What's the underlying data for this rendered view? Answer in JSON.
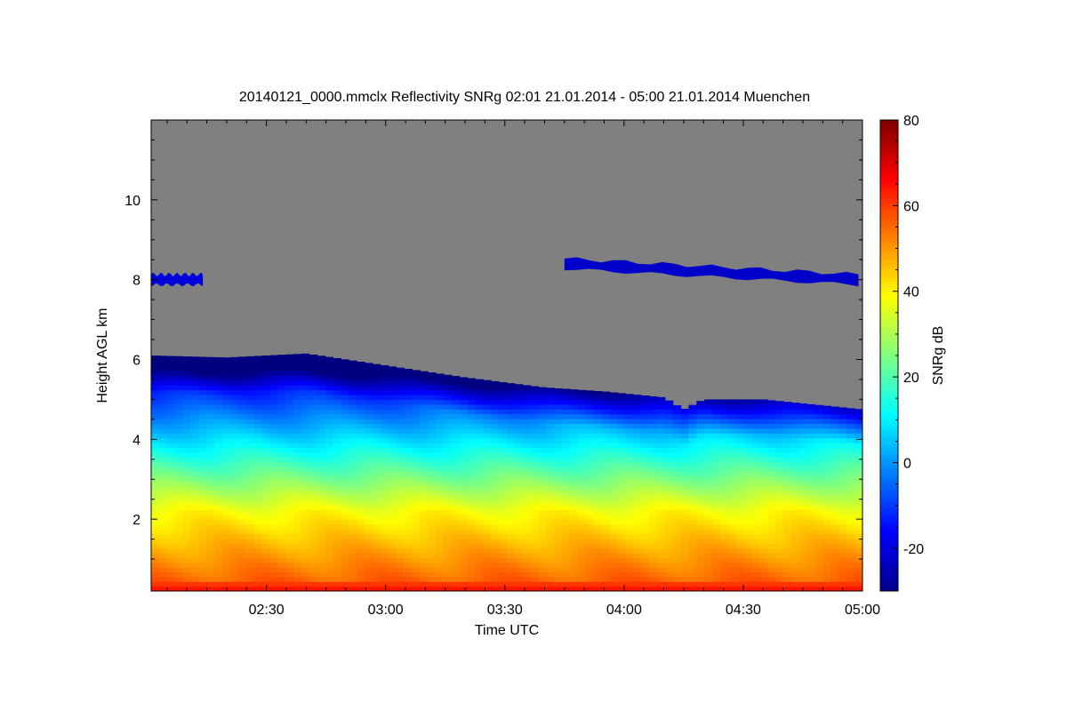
{
  "chart_data": {
    "type": "heatmap",
    "title": "20140121_0000.mmclx Reflectivity SNRg   02:01 21.01.2014 - 05:00 21.01.2014 Muenchen",
    "xlabel": "Time UTC",
    "ylabel": "Height AGL km",
    "x_range": [
      "02:01",
      "05:00"
    ],
    "x_ticks": [
      "02:30",
      "03:00",
      "03:30",
      "04:00",
      "04:30",
      "05:00"
    ],
    "x_tick_minutes": [
      150,
      180,
      210,
      240,
      270,
      300
    ],
    "y_range_km": [
      0.2,
      12.0
    ],
    "y_ticks": [
      2,
      4,
      6,
      8,
      10
    ],
    "missing_color": "#808080",
    "colorbar": {
      "label": "SNRg dB",
      "range": [
        -30,
        80
      ],
      "ticks": [
        -20,
        0,
        20,
        40,
        60,
        80
      ],
      "colormap": "jet"
    },
    "cloud_top_km": {
      "minutes": [
        121,
        140,
        160,
        180,
        200,
        220,
        235,
        250,
        255,
        260,
        275,
        300
      ],
      "height": [
        6.1,
        6.05,
        6.15,
        5.85,
        5.55,
        5.3,
        5.2,
        5.05,
        4.75,
        5.0,
        5.0,
        4.75
      ]
    },
    "cirrus_layers": [
      {
        "start": "02:01",
        "end": "02:14",
        "height_km": 8.0,
        "snr_db": -20
      },
      {
        "start": "03:45",
        "end": "04:59",
        "height_km": [
          8.4,
          8.0
        ],
        "snr_db": -22
      }
    ]
  }
}
